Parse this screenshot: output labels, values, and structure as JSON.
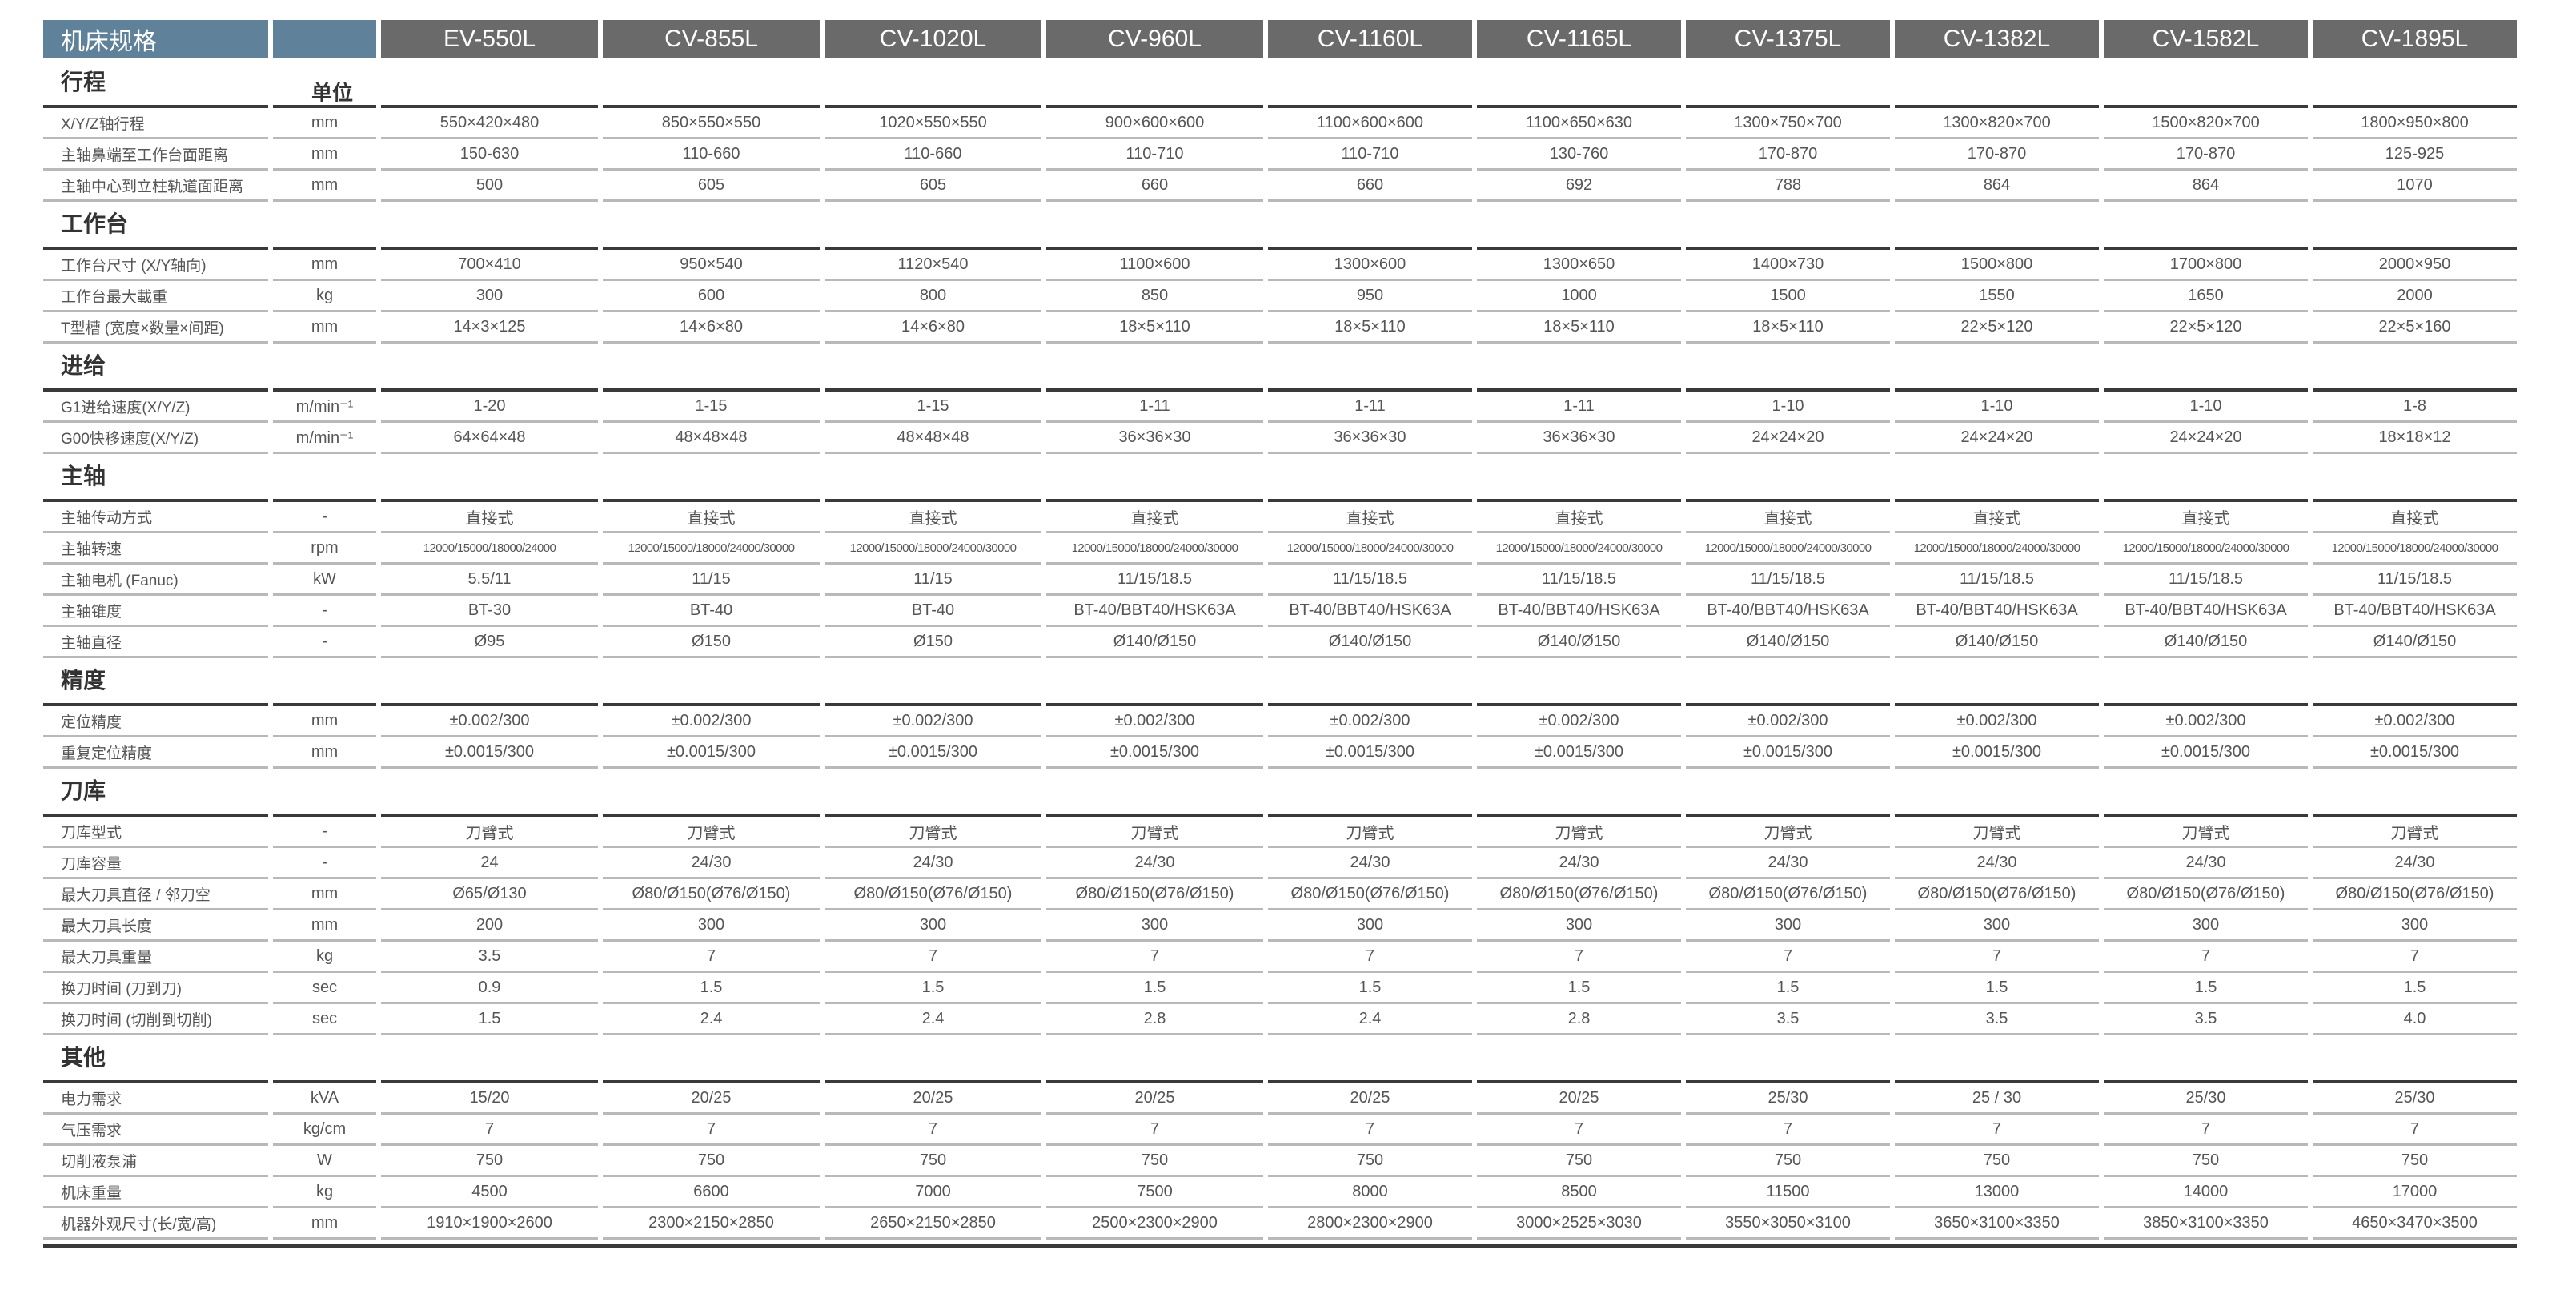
{
  "header": {
    "spec_label": "机床规格",
    "models": [
      "EV-550L",
      "CV-855L",
      "CV-1020L",
      "CV-960L",
      "CV-1160L",
      "CV-1165L",
      "CV-1375L",
      "CV-1382L",
      "CV-1582L",
      "CV-1895L"
    ]
  },
  "colors": {
    "header_label_bg": "#5f8199",
    "header_model_bg": "#6a6a6b"
  },
  "sections": [
    {
      "title": "行程",
      "unit_header": "单位",
      "rows": [
        {
          "label": "X/Y/Z轴行程",
          "unit": "mm",
          "values": [
            "550×420×480",
            "850×550×550",
            "1020×550×550",
            "900×600×600",
            "1100×600×600",
            "1100×650×630",
            "1300×750×700",
            "1300×820×700",
            "1500×820×700",
            "1800×950×800"
          ]
        },
        {
          "label": "主轴鼻端至工作台面距离",
          "unit": "mm",
          "values": [
            "150-630",
            "110-660",
            "110-660",
            "110-710",
            "110-710",
            "130-760",
            "170-870",
            "170-870",
            "170-870",
            "125-925"
          ]
        },
        {
          "label": "主轴中心到立柱轨道面距离",
          "unit": "mm",
          "values": [
            "500",
            "605",
            "605",
            "660",
            "660",
            "692",
            "788",
            "864",
            "864",
            "1070"
          ]
        }
      ]
    },
    {
      "title": "工作台",
      "rows": [
        {
          "label": "工作台尺寸 (X/Y轴向)",
          "unit": "mm",
          "values": [
            "700×410",
            "950×540",
            "1120×540",
            "1100×600",
            "1300×600",
            "1300×650",
            "1400×730",
            "1500×800",
            "1700×800",
            "2000×950"
          ]
        },
        {
          "label": "工作台最大載重",
          "unit": "kg",
          "values": [
            "300",
            "600",
            "800",
            "850",
            "950",
            "1000",
            "1500",
            "1550",
            "1650",
            "2000"
          ]
        },
        {
          "label": "T型槽 (宽度×数量×间距)",
          "unit": "mm",
          "values": [
            "14×3×125",
            "14×6×80",
            "14×6×80",
            "18×5×110",
            "18×5×110",
            "18×5×110",
            "18×5×110",
            "22×5×120",
            "22×5×120",
            "22×5×160"
          ]
        }
      ]
    },
    {
      "title": "进给",
      "rows": [
        {
          "label": "G1进给速度(X/Y/Z)",
          "unit": "m/min⁻¹",
          "values": [
            "1-20",
            "1-15",
            "1-15",
            "1-11",
            "1-11",
            "1-11",
            "1-10",
            "1-10",
            "1-10",
            "1-8"
          ]
        },
        {
          "label": "G00快移速度(X/Y/Z)",
          "unit": "m/min⁻¹",
          "values": [
            "64×64×48",
            "48×48×48",
            "48×48×48",
            "36×36×30",
            "36×36×30",
            "36×36×30",
            "24×24×20",
            "24×24×20",
            "24×24×20",
            "18×18×12"
          ]
        }
      ]
    },
    {
      "title": "主轴",
      "rows": [
        {
          "label": "主轴传动方式",
          "unit": "-",
          "values": [
            "直接式",
            "直接式",
            "直接式",
            "直接式",
            "直接式",
            "直接式",
            "直接式",
            "直接式",
            "直接式",
            "直接式"
          ]
        },
        {
          "label": "主轴转速",
          "unit": "rpm",
          "small": true,
          "values": [
            "12000/15000/18000/24000",
            "12000/15000/18000/24000/30000",
            "12000/15000/18000/24000/30000",
            "12000/15000/18000/24000/30000",
            "12000/15000/18000/24000/30000",
            "12000/15000/18000/24000/30000",
            "12000/15000/18000/24000/30000",
            "12000/15000/18000/24000/30000",
            "12000/15000/18000/24000/30000",
            "12000/15000/18000/24000/30000"
          ]
        },
        {
          "label": "主轴电机 (Fanuc)",
          "unit": "kW",
          "values": [
            "5.5/11",
            "11/15",
            "11/15",
            "11/15/18.5",
            "11/15/18.5",
            "11/15/18.5",
            "11/15/18.5",
            "11/15/18.5",
            "11/15/18.5",
            "11/15/18.5"
          ]
        },
        {
          "label": "主轴锥度",
          "unit": "-",
          "values": [
            "BT-30",
            "BT-40",
            "BT-40",
            "BT-40/BBT40/HSK63A",
            "BT-40/BBT40/HSK63A",
            "BT-40/BBT40/HSK63A",
            "BT-40/BBT40/HSK63A",
            "BT-40/BBT40/HSK63A",
            "BT-40/BBT40/HSK63A",
            "BT-40/BBT40/HSK63A"
          ]
        },
        {
          "label": "主轴直径",
          "unit": "-",
          "values": [
            "Ø95",
            "Ø150",
            "Ø150",
            "Ø140/Ø150",
            "Ø140/Ø150",
            "Ø140/Ø150",
            "Ø140/Ø150",
            "Ø140/Ø150",
            "Ø140/Ø150",
            "Ø140/Ø150"
          ]
        }
      ]
    },
    {
      "title": "精度",
      "rows": [
        {
          "label": "定位精度",
          "unit": "mm",
          "values": [
            "±0.002/300",
            "±0.002/300",
            "±0.002/300",
            "±0.002/300",
            "±0.002/300",
            "±0.002/300",
            "±0.002/300",
            "±0.002/300",
            "±0.002/300",
            "±0.002/300"
          ]
        },
        {
          "label": "重复定位精度",
          "unit": "mm",
          "values": [
            "±0.0015/300",
            "±0.0015/300",
            "±0.0015/300",
            "±0.0015/300",
            "±0.0015/300",
            "±0.0015/300",
            "±0.0015/300",
            "±0.0015/300",
            "±0.0015/300",
            "±0.0015/300"
          ]
        }
      ]
    },
    {
      "title": "刀库",
      "rows": [
        {
          "label": "刀库型式",
          "unit": "-",
          "values": [
            "刀臂式",
            "刀臂式",
            "刀臂式",
            "刀臂式",
            "刀臂式",
            "刀臂式",
            "刀臂式",
            "刀臂式",
            "刀臂式",
            "刀臂式"
          ]
        },
        {
          "label": "刀库容量",
          "unit": "-",
          "values": [
            "24",
            "24/30",
            "24/30",
            "24/30",
            "24/30",
            "24/30",
            "24/30",
            "24/30",
            "24/30",
            "24/30"
          ]
        },
        {
          "label": "最大刀具直径 / 邻刀空",
          "unit": "mm",
          "values": [
            "Ø65/Ø130",
            "Ø80/Ø150(Ø76/Ø150)",
            "Ø80/Ø150(Ø76/Ø150)",
            "Ø80/Ø150(Ø76/Ø150)",
            "Ø80/Ø150(Ø76/Ø150)",
            "Ø80/Ø150(Ø76/Ø150)",
            "Ø80/Ø150(Ø76/Ø150)",
            "Ø80/Ø150(Ø76/Ø150)",
            "Ø80/Ø150(Ø76/Ø150)",
            "Ø80/Ø150(Ø76/Ø150)"
          ]
        },
        {
          "label": "最大刀具长度",
          "unit": "mm",
          "values": [
            "200",
            "300",
            "300",
            "300",
            "300",
            "300",
            "300",
            "300",
            "300",
            "300"
          ]
        },
        {
          "label": "最大刀具重量",
          "unit": "kg",
          "values": [
            "3.5",
            "7",
            "7",
            "7",
            "7",
            "7",
            "7",
            "7",
            "7",
            "7"
          ]
        },
        {
          "label": "换刀时间 (刀到刀)",
          "unit": "sec",
          "values": [
            "0.9",
            "1.5",
            "1.5",
            "1.5",
            "1.5",
            "1.5",
            "1.5",
            "1.5",
            "1.5",
            "1.5"
          ]
        },
        {
          "label": "换刀时间 (切削到切削)",
          "unit": "sec",
          "values": [
            "1.5",
            "2.4",
            "2.4",
            "2.8",
            "2.4",
            "2.8",
            "3.5",
            "3.5",
            "3.5",
            "4.0"
          ]
        }
      ]
    },
    {
      "title": "其他",
      "rows": [
        {
          "label": "电力需求",
          "unit": "kVA",
          "values": [
            "15/20",
            "20/25",
            "20/25",
            "20/25",
            "20/25",
            "20/25",
            "25/30",
            "25 / 30",
            "25/30",
            "25/30"
          ]
        },
        {
          "label": "气压需求",
          "unit": "kg/cm",
          "values": [
            "7",
            "7",
            "7",
            "7",
            "7",
            "7",
            "7",
            "7",
            "7",
            "7"
          ]
        },
        {
          "label": "切削液泵浦",
          "unit": "W",
          "values": [
            "750",
            "750",
            "750",
            "750",
            "750",
            "750",
            "750",
            "750",
            "750",
            "750"
          ]
        },
        {
          "label": "机床重量",
          "unit": "kg",
          "values": [
            "4500",
            "6600",
            "7000",
            "7500",
            "8000",
            "8500",
            "11500",
            "13000",
            "14000",
            "17000"
          ]
        },
        {
          "label": "机器外观尺寸(长/宽/高)",
          "unit": "mm",
          "values": [
            "1910×1900×2600",
            "2300×2150×2850",
            "2650×2150×2850",
            "2500×2300×2900",
            "2800×2300×2900",
            "3000×2525×3030",
            "3550×3050×3100",
            "3650×3100×3350",
            "3850×3100×3350",
            "4650×3470×3500"
          ]
        }
      ]
    }
  ]
}
